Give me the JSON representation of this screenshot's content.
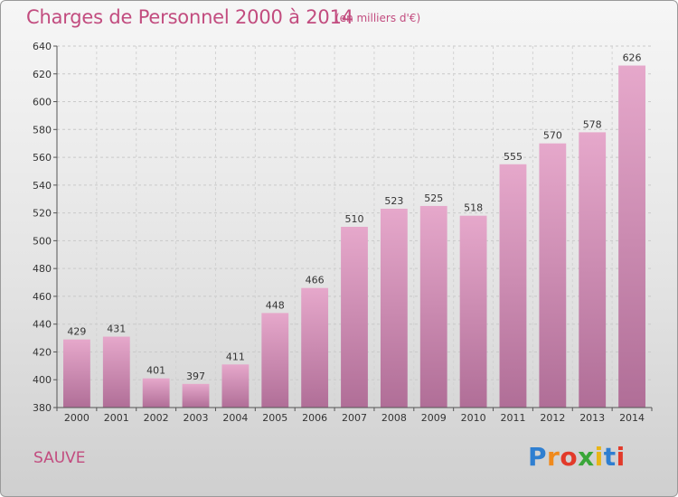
{
  "header": {
    "title": "Charges de Personnel 2000 à 2014",
    "subtitle": "(en milliers d'€)"
  },
  "footer": {
    "location": "SAUVE",
    "logo_letters": [
      "P",
      "r",
      "o",
      "x",
      "i",
      "t",
      "i"
    ],
    "logo_colors": [
      "#2f7fd1",
      "#f08a1c",
      "#e23a2a",
      "#3aa639",
      "#e9b516",
      "#2f7fd1",
      "#e23a2a"
    ]
  },
  "chart_data": {
    "type": "bar",
    "categories": [
      "2000",
      "2001",
      "2002",
      "2003",
      "2004",
      "2005",
      "2006",
      "2007",
      "2008",
      "2009",
      "2010",
      "2011",
      "2012",
      "2013",
      "2014"
    ],
    "values": [
      429,
      431,
      401,
      397,
      411,
      448,
      466,
      510,
      523,
      525,
      518,
      555,
      570,
      578,
      626
    ],
    "ylim": [
      380,
      640
    ],
    "yticks": [
      380,
      400,
      420,
      440,
      460,
      480,
      500,
      520,
      540,
      560,
      580,
      600,
      620,
      640
    ],
    "grid": true,
    "bar_color_top": "#e6a8cb",
    "bar_color_bottom": "#b06e97"
  }
}
